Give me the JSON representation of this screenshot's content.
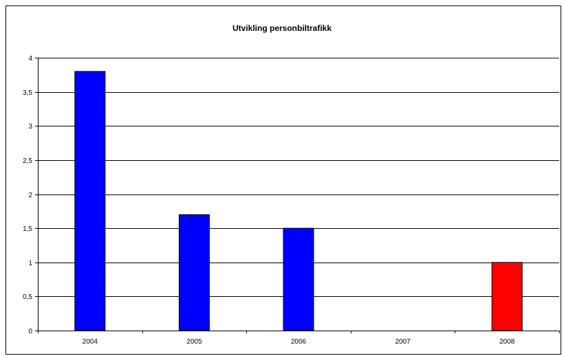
{
  "chart_data": {
    "type": "bar",
    "title": "Utvikling personbiltrafikk",
    "xlabel": "",
    "ylabel": "",
    "categories": [
      "2004",
      "2005",
      "2006",
      "2007",
      "2008"
    ],
    "values": [
      3.8,
      1.7,
      1.5,
      0,
      1
    ],
    "bar_colors": [
      "#0000ff",
      "#0000ff",
      "#0000ff",
      "#0000ff",
      "#ff0000"
    ],
    "ylim": [
      0,
      4
    ],
    "yticks": [
      0,
      0.5,
      1,
      1.5,
      2,
      2.5,
      3,
      3.5,
      4
    ],
    "ytick_labels": [
      "0",
      "0,5",
      "1",
      "1,5",
      "2",
      "2,5",
      "3",
      "3,5",
      "4"
    ],
    "grid": true,
    "legend": "none"
  }
}
